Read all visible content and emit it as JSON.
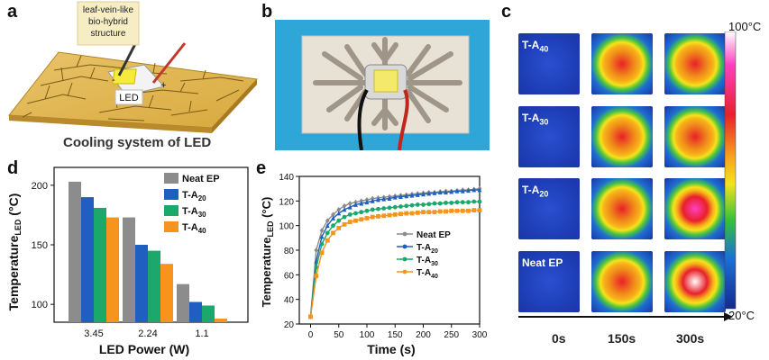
{
  "letters": {
    "a": "a",
    "b": "b",
    "c": "c",
    "d": "d",
    "e": "e"
  },
  "panel_a": {
    "callout": [
      "leaf-vein-like",
      "bio-hybrid",
      "structure"
    ],
    "led_label": "LED",
    "caption": "Cooling system of LED",
    "minus": "-",
    "plus": "+"
  },
  "panel_c": {
    "rows": [
      {
        "label": "T-A",
        "sub": "40"
      },
      {
        "label": "T-A",
        "sub": "30"
      },
      {
        "label": "T-A",
        "sub": "20"
      },
      {
        "label": "Neat EP",
        "sub": ""
      }
    ],
    "times": [
      "0s",
      "150s",
      "300s"
    ],
    "colorbar_max": "100°C",
    "colorbar_min": "20°C"
  },
  "chart_data": [
    {
      "type": "bar",
      "xlabel": "LED Power (W)",
      "ylabel_main": "Temperature",
      "ylabel_sub": "LED",
      "ylabel_unit": "(°C)",
      "categories": [
        "3.45",
        "2.24",
        "1.1"
      ],
      "series": [
        {
          "name": "Neat EP",
          "name_sub": "",
          "color": "#8c8c8c",
          "values": [
            203,
            173,
            117
          ]
        },
        {
          "name": "T-A",
          "name_sub": "20",
          "color": "#1f5fbf",
          "values": [
            190,
            150,
            102
          ]
        },
        {
          "name": "T-A",
          "name_sub": "30",
          "color": "#1aa86b",
          "values": [
            181,
            145,
            99
          ]
        },
        {
          "name": "T-A",
          "name_sub": "40",
          "color": "#f7941d",
          "values": [
            173,
            134,
            88
          ]
        }
      ],
      "yticks": [
        100,
        150,
        200
      ],
      "ylim": [
        85,
        215
      ]
    },
    {
      "type": "line",
      "xlabel": "Time (s)",
      "ylabel_main": "Temperature",
      "ylabel_sub": "LED",
      "ylabel_unit": "(°C)",
      "x": [
        0,
        10,
        20,
        30,
        40,
        50,
        60,
        70,
        80,
        90,
        100,
        110,
        120,
        130,
        140,
        150,
        160,
        170,
        180,
        190,
        200,
        210,
        220,
        230,
        240,
        250,
        260,
        270,
        280,
        290,
        300
      ],
      "series": [
        {
          "name": "Neat EP",
          "name_sub": "",
          "color": "#8c8c8c",
          "marker": "diamond",
          "values": [
            26,
            80,
            96,
            104,
            109,
            113,
            116,
            118,
            119,
            120,
            121,
            122,
            122.5,
            123,
            123.5,
            124,
            124.5,
            125,
            125.5,
            126,
            126.5,
            127,
            127,
            127.5,
            128,
            128,
            128.5,
            129,
            129,
            129.5,
            130
          ]
        },
        {
          "name": "T-A",
          "name_sub": "20",
          "color": "#1f5fbf",
          "marker": "triangle",
          "values": [
            26,
            71,
            91,
            100,
            106,
            110,
            113,
            115,
            117,
            118,
            119,
            120,
            121,
            121.5,
            122,
            123,
            123.5,
            124,
            124.5,
            125,
            125.5,
            126,
            126.5,
            127,
            127,
            127.5,
            128,
            128,
            128.5,
            129,
            129
          ]
        },
        {
          "name": "T-A",
          "name_sub": "30",
          "color": "#1aa86b",
          "marker": "circle",
          "values": [
            26,
            66,
            85,
            94,
            100,
            104,
            107,
            109,
            110,
            111,
            112,
            113,
            113.5,
            114,
            114.5,
            115,
            115.5,
            116,
            116.5,
            117,
            117,
            117.5,
            118,
            118,
            118.5,
            118.5,
            119,
            119,
            119,
            119.5,
            119.5
          ]
        },
        {
          "name": "T-A",
          "name_sub": "40",
          "color": "#f7941d",
          "marker": "square",
          "values": [
            26,
            59,
            78,
            88,
            94,
            98,
            101,
            103,
            104,
            105,
            106,
            107,
            107.5,
            108,
            108.5,
            109,
            109.5,
            110,
            110,
            110.5,
            111,
            111,
            111,
            111.5,
            111.5,
            112,
            112,
            112,
            112,
            112.5,
            112.5
          ]
        }
      ],
      "xticks": [
        0,
        50,
        100,
        150,
        200,
        250,
        300
      ],
      "yticks": [
        20,
        40,
        60,
        80,
        100,
        120,
        140
      ],
      "xlim": [
        -20,
        300
      ],
      "ylim": [
        20,
        140
      ]
    }
  ]
}
